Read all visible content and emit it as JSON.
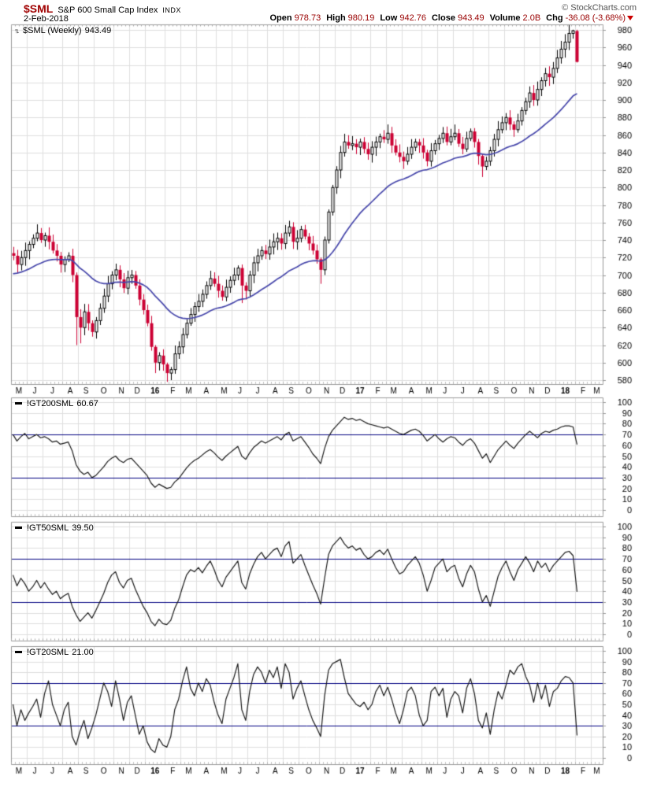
{
  "header": {
    "symbol": "$SML",
    "name": "S&P 600 Small Cap Index",
    "exchange": "INDX",
    "copyright": "© StockCharts.com",
    "date": "2-Feb-2018",
    "quote": [
      {
        "label": "Open",
        "value": "978.73"
      },
      {
        "label": "High",
        "value": "980.19"
      },
      {
        "label": "Low",
        "value": "942.76"
      },
      {
        "label": "Close",
        "value": "943.49"
      },
      {
        "label": "Volume",
        "value": "2.0B"
      },
      {
        "label": "Chg",
        "value": "-36.08 (-3.68%)"
      }
    ],
    "change_direction_icon": "down-triangle-icon"
  },
  "colors": {
    "accent_red": "#a00000",
    "value_red": "#990000",
    "candle_down": "#cc0033",
    "candle_up": "#000000",
    "ma_blue": "#4646aa",
    "threshold_navy": "#000080",
    "grid": "#dedede",
    "frame": "#999999",
    "text": "#000000",
    "muted_text": "#555555"
  },
  "x_axis": {
    "months": [
      {
        "label": "M",
        "weeks": 4
      },
      {
        "label": "J",
        "weeks": 4
      },
      {
        "label": "J",
        "weeks": 5
      },
      {
        "label": "A",
        "weeks": 4
      },
      {
        "label": "S",
        "weeks": 4
      },
      {
        "label": "O",
        "weeks": 5
      },
      {
        "label": "N",
        "weeks": 4
      },
      {
        "label": "D",
        "weeks": 4
      },
      {
        "label": "16",
        "weeks": 5,
        "bold": true
      },
      {
        "label": "F",
        "weeks": 4
      },
      {
        "label": "M",
        "weeks": 4
      },
      {
        "label": "A",
        "weeks": 5
      },
      {
        "label": "M",
        "weeks": 4
      },
      {
        "label": "J",
        "weeks": 4
      },
      {
        "label": "J",
        "weeks": 5
      },
      {
        "label": "A",
        "weeks": 4
      },
      {
        "label": "S",
        "weeks": 4
      },
      {
        "label": "O",
        "weeks": 5
      },
      {
        "label": "N",
        "weeks": 4
      },
      {
        "label": "D",
        "weeks": 4
      },
      {
        "label": "17",
        "weeks": 5,
        "bold": true
      },
      {
        "label": "F",
        "weeks": 4
      },
      {
        "label": "M",
        "weeks": 4
      },
      {
        "label": "A",
        "weeks": 5
      },
      {
        "label": "M",
        "weeks": 4
      },
      {
        "label": "J",
        "weeks": 4
      },
      {
        "label": "J",
        "weeks": 5
      },
      {
        "label": "A",
        "weeks": 4
      },
      {
        "label": "S",
        "weeks": 4
      },
      {
        "label": "O",
        "weeks": 5
      },
      {
        "label": "N",
        "weeks": 4
      },
      {
        "label": "D",
        "weeks": 4
      },
      {
        "label": "18",
        "weeks": 5,
        "bold": true
      },
      {
        "label": "F",
        "weeks": 4
      },
      {
        "label": "M",
        "weeks": 3
      }
    ]
  },
  "chart_data": [
    {
      "type": "candlestick",
      "title": "$SML (Weekly)",
      "last_value": "943.49",
      "legend_icon": "up-down-arrows-icon",
      "ylim": [
        580,
        980
      ],
      "ytick_step": 20,
      "grid": true,
      "closes": [
        722,
        712,
        720,
        728,
        735,
        742,
        748,
        740,
        745,
        738,
        728,
        722,
        712,
        718,
        722,
        700,
        652,
        640,
        658,
        645,
        635,
        648,
        662,
        676,
        690,
        700,
        706,
        695,
        685,
        697,
        700,
        688,
        672,
        660,
        645,
        618,
        600,
        608,
        598,
        588,
        592,
        610,
        618,
        632,
        645,
        655,
        664,
        670,
        678,
        688,
        696,
        690,
        682,
        675,
        686,
        694,
        700,
        708,
        688,
        682,
        700,
        714,
        722,
        728,
        724,
        732,
        738,
        742,
        736,
        748,
        755,
        738,
        742,
        752,
        744,
        736,
        728,
        718,
        706,
        740,
        772,
        800,
        820,
        840,
        852,
        848,
        850,
        846,
        852,
        844,
        838,
        846,
        852,
        858,
        855,
        862,
        848,
        840,
        835,
        830,
        838,
        846,
        852,
        848,
        840,
        830,
        842,
        850,
        856,
        862,
        852,
        858,
        862,
        850,
        844,
        856,
        864,
        852,
        836,
        824,
        830,
        842,
        855,
        866,
        874,
        880,
        872,
        866,
        876,
        888,
        898,
        908,
        900,
        912,
        922,
        930,
        926,
        936,
        948,
        958,
        966,
        976,
        979,
        943.49
      ],
      "special_bars": {
        "16": [
          700,
          703,
          620,
          652
        ],
        "17": [
          652,
          661,
          622,
          640
        ],
        "36": [
          618,
          620,
          588,
          600
        ],
        "39": [
          598,
          600,
          578,
          588
        ],
        "40": [
          588,
          595,
          580,
          592
        ],
        "58": [
          708,
          712,
          668,
          688
        ],
        "70": [
          748,
          762,
          744,
          755
        ],
        "78": [
          718,
          720,
          690,
          706
        ],
        "79": [
          706,
          744,
          700,
          740
        ],
        "80": [
          740,
          775,
          736,
          772
        ],
        "81": [
          772,
          803,
          768,
          800
        ],
        "95": [
          855,
          872,
          850,
          862
        ],
        "119": [
          836,
          838,
          812,
          824
        ],
        "142": [
          976,
          980.19,
          970,
          979
        ],
        "143": [
          978.73,
          980.19,
          942.76,
          943.49
        ]
      },
      "overlay_ma": {
        "kind": "ema",
        "seed": 700,
        "alpha": 0.065
      }
    },
    {
      "type": "line",
      "title": "!GT200SML",
      "last_value": "60.67",
      "ylim": [
        0,
        100
      ],
      "ytick_step": 10,
      "hlines": [
        70,
        30
      ],
      "values": [
        70,
        64,
        68,
        71,
        66,
        68,
        70,
        67,
        68,
        66,
        63,
        64,
        61,
        62,
        63,
        55,
        42,
        36,
        33,
        35,
        30,
        32,
        36,
        40,
        45,
        48,
        50,
        46,
        44,
        47,
        48,
        44,
        40,
        36,
        32,
        25,
        21,
        24,
        22,
        20,
        21,
        26,
        29,
        34,
        39,
        43,
        46,
        48,
        51,
        54,
        56,
        53,
        49,
        46,
        50,
        53,
        56,
        59,
        50,
        47,
        53,
        58,
        61,
        64,
        62,
        64,
        66,
        68,
        65,
        70,
        72,
        64,
        66,
        68,
        63,
        58,
        52,
        48,
        43,
        57,
        68,
        74,
        78,
        82,
        86,
        84,
        85,
        83,
        84,
        82,
        80,
        79,
        78,
        77,
        76,
        77,
        75,
        73,
        71,
        70,
        72,
        74,
        75,
        73,
        69,
        64,
        67,
        70,
        66,
        63,
        66,
        68,
        67,
        63,
        60,
        64,
        66,
        62,
        55,
        48,
        52,
        44,
        50,
        56,
        60,
        64,
        60,
        57,
        62,
        66,
        70,
        73,
        70,
        67,
        71,
        73,
        72,
        74,
        75,
        77,
        78,
        78,
        77,
        60.67
      ]
    },
    {
      "type": "line",
      "title": "!GT50SML",
      "last_value": "39.50",
      "ylim": [
        0,
        100
      ],
      "ytick_step": 10,
      "hlines": [
        70,
        30
      ],
      "values": [
        55,
        45,
        52,
        47,
        40,
        44,
        50,
        43,
        48,
        42,
        37,
        40,
        33,
        36,
        38,
        26,
        18,
        12,
        16,
        20,
        15,
        22,
        30,
        38,
        48,
        55,
        58,
        48,
        43,
        50,
        52,
        42,
        34,
        26,
        20,
        12,
        8,
        14,
        10,
        9,
        13,
        24,
        32,
        44,
        55,
        60,
        58,
        62,
        57,
        63,
        68,
        60,
        50,
        44,
        53,
        58,
        63,
        68,
        48,
        42,
        56,
        65,
        72,
        76,
        70,
        74,
        78,
        80,
        72,
        82,
        86,
        66,
        70,
        74,
        64,
        55,
        46,
        38,
        28,
        52,
        74,
        82,
        86,
        90,
        84,
        80,
        82,
        78,
        80,
        74,
        70,
        72,
        76,
        78,
        74,
        79,
        70,
        62,
        56,
        58,
        64,
        68,
        72,
        66,
        55,
        40,
        50,
        62,
        66,
        70,
        58,
        62,
        64,
        52,
        44,
        56,
        64,
        58,
        42,
        30,
        36,
        26,
        40,
        54,
        62,
        68,
        58,
        50,
        60,
        66,
        72,
        66,
        58,
        68,
        62,
        66,
        58,
        64,
        68,
        72,
        76,
        77,
        73,
        39.5
      ]
    },
    {
      "type": "line",
      "title": "!GT20SML",
      "last_value": "21.00",
      "ylim": [
        0,
        100
      ],
      "ytick_step": 10,
      "hlines": [
        70,
        30
      ],
      "values": [
        50,
        30,
        45,
        35,
        42,
        48,
        55,
        38,
        60,
        72,
        50,
        40,
        30,
        45,
        52,
        20,
        12,
        25,
        35,
        18,
        28,
        40,
        55,
        70,
        62,
        48,
        72,
        55,
        35,
        52,
        58,
        40,
        22,
        30,
        15,
        8,
        5,
        18,
        12,
        10,
        20,
        45,
        55,
        72,
        85,
        65,
        58,
        70,
        62,
        74,
        68,
        52,
        40,
        32,
        55,
        65,
        75,
        88,
        45,
        35,
        62,
        78,
        85,
        80,
        70,
        82,
        75,
        85,
        65,
        88,
        80,
        55,
        65,
        72,
        58,
        45,
        35,
        28,
        20,
        58,
        82,
        88,
        90,
        92,
        75,
        60,
        55,
        50,
        48,
        52,
        45,
        50,
        62,
        68,
        58,
        66,
        55,
        42,
        32,
        45,
        62,
        66,
        58,
        40,
        30,
        35,
        62,
        66,
        58,
        65,
        38,
        55,
        62,
        58,
        42,
        65,
        74,
        60,
        35,
        28,
        42,
        22,
        45,
        62,
        55,
        68,
        82,
        78,
        85,
        88,
        76,
        68,
        52,
        70,
        55,
        68,
        48,
        62,
        65,
        72,
        76,
        75,
        70,
        21
      ]
    }
  ]
}
